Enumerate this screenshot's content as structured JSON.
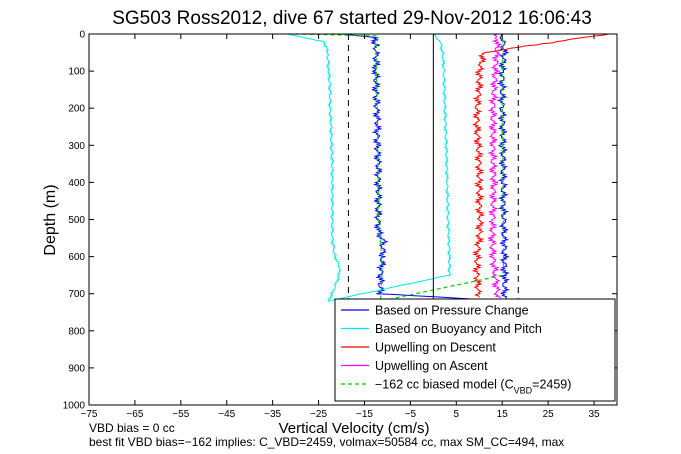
{
  "chart_data": {
    "type": "line",
    "title": "SG503 Ross2012, dive 67 started 29-Nov-2012 16:06:43",
    "xlabel": "Vertical Velocity (cm/s)",
    "ylabel": "Depth (m)",
    "xlim": [
      -75,
      40
    ],
    "ylim": [
      0,
      1000
    ],
    "y_reversed": true,
    "xticks": [
      "−75",
      "−65",
      "−55",
      "−45",
      "−35",
      "−25",
      "−15",
      "−5",
      "5",
      "15",
      "25",
      "35"
    ],
    "xtick_values": [
      -75,
      -65,
      -55,
      -45,
      -35,
      -25,
      -15,
      -5,
      5,
      15,
      25,
      35
    ],
    "yticks": [
      "0",
      "100",
      "200",
      "300",
      "400",
      "500",
      "600",
      "700",
      "800",
      "900",
      "1000"
    ],
    "ytick_values": [
      0,
      100,
      200,
      300,
      400,
      500,
      600,
      700,
      800,
      900,
      1000
    ],
    "legend_position": "bottom-right",
    "series": [
      {
        "name": "Based on Pressure Change",
        "color": "#0000ff",
        "depth": [
          0,
          10,
          30,
          60,
          100,
          150,
          200,
          250,
          300,
          350,
          400,
          450,
          500,
          530,
          560,
          600,
          650,
          700,
          720,
          650,
          600,
          500,
          400,
          300,
          200,
          100,
          50,
          20,
          5,
          0
        ],
        "velocity": [
          -20,
          -13,
          -12.5,
          -12.5,
          -12.5,
          -12.5,
          -12.3,
          -12.2,
          -12.2,
          -12,
          -12,
          -12,
          -12,
          -12,
          -11,
          -11,
          -11.5,
          -11.5,
          15.5,
          15.5,
          15.5,
          15.3,
          15.2,
          15.2,
          15,
          15,
          15.5,
          15,
          15,
          15
        ]
      },
      {
        "name": "Based on Buoyancy and Pitch",
        "color": "#00e5ee",
        "depth": [
          0,
          20,
          40,
          60,
          100,
          150,
          200,
          250,
          300,
          350,
          400,
          450,
          500,
          550,
          600,
          620,
          650,
          700,
          720,
          650,
          600,
          500,
          400,
          300,
          200,
          100,
          50,
          20,
          0
        ],
        "velocity": [
          -32,
          -24,
          -23,
          -23,
          -22.8,
          -22.5,
          -22.5,
          -22.3,
          -22.2,
          -22,
          -22,
          -22,
          -22,
          -22,
          -21.5,
          -20.5,
          -20.5,
          -22,
          -23,
          3.5,
          3.5,
          3.2,
          3,
          2.8,
          2.5,
          2.3,
          2,
          1.5,
          0
        ]
      },
      {
        "name": "Upwelling on Descent",
        "color": "#ff0000",
        "depth": [
          0,
          50,
          100,
          150,
          200,
          250,
          300,
          350,
          400,
          450,
          500,
          550,
          600,
          650,
          700,
          710
        ],
        "velocity": [
          38,
          11,
          10,
          10,
          9.5,
          9.5,
          9.8,
          10,
          10,
          10,
          10.2,
          10,
          9.5,
          9.5,
          9.8,
          10
        ]
      },
      {
        "name": "Upwelling on Ascent",
        "color": "#ff00ff",
        "depth": [
          710,
          650,
          600,
          550,
          500,
          450,
          400,
          350,
          300,
          250,
          200,
          150,
          100,
          50,
          10,
          0
        ],
        "velocity": [
          14,
          13.5,
          13,
          12.8,
          13,
          13,
          13.2,
          13,
          13,
          13,
          13,
          13.2,
          13.5,
          13.8,
          14,
          14
        ]
      },
      {
        "name": "−162 cc biased model (C",
        "name_sub": "VBD",
        "name_tail": "=2459)",
        "color": "#00cc00",
        "dashed": true,
        "depth": [
          0,
          5,
          40,
          100,
          200,
          300,
          400,
          500,
          550,
          600,
          650,
          700,
          720,
          650,
          600,
          500,
          400,
          300,
          200,
          100,
          40,
          5,
          0
        ],
        "velocity": [
          -30,
          -12,
          -12.5,
          -12.4,
          -12.2,
          -12.1,
          -12,
          -12,
          -11.6,
          -11.2,
          -11.2,
          -11.4,
          -11.5,
          15.3,
          15.3,
          15.2,
          15.2,
          15.1,
          15,
          15,
          15.2,
          15,
          15
        ]
      }
    ],
    "reference_lines": [
      {
        "x": -18.5,
        "style": "dashed",
        "color": "#000000"
      },
      {
        "x": 18.5,
        "style": "dashed",
        "color": "#000000"
      },
      {
        "x": 0,
        "style": "solid",
        "color": "#000000"
      }
    ],
    "footnotes": [
      "VBD bias = 0 cc",
      "best fit VBD bias=−162 implies: C_VBD=2459, volmax=50584 cc, max SM_CC=494, max"
    ]
  }
}
